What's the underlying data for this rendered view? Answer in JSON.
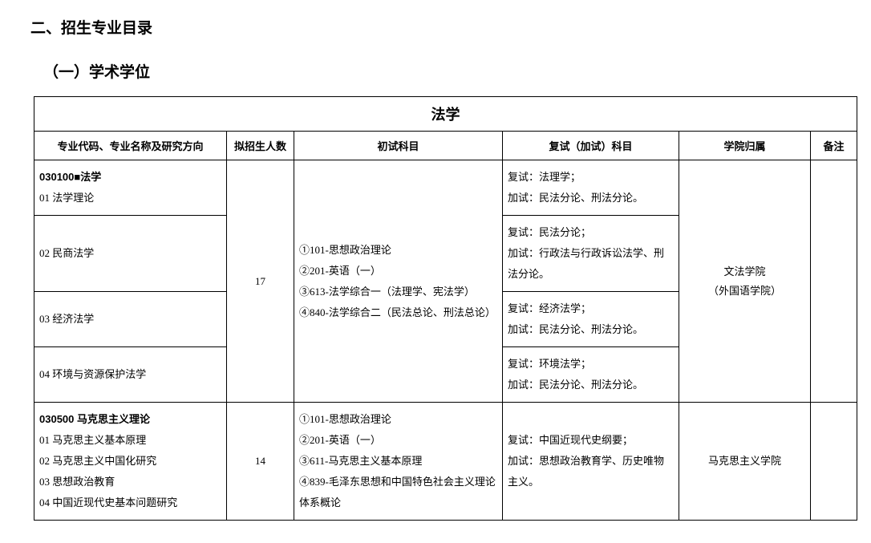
{
  "headings": {
    "section": "二、招生专业目录",
    "subsection": "（一）学术学位"
  },
  "table": {
    "title": "法学",
    "columns": {
      "major": "专业代码、专业名称及研究方向",
      "enroll": "拟招生人数",
      "initial": "初试科目",
      "retest": "复试（加试）科目",
      "college": "学院归属",
      "remark": "备注"
    },
    "blocks": [
      {
        "major_header": "030100■法学",
        "directions": [
          "01 法学理论",
          "02 民商法学",
          "03 经济法学",
          "04 环境与资源保护法学"
        ],
        "enroll": "17",
        "initial": [
          "①101-思想政治理论",
          "②201-英语（一）",
          "③613-法学综合一（法理学、宪法学）",
          "④840-法学综合二（民法总论、刑法总论）"
        ],
        "retests": [
          {
            "fu": "复试：法理学；",
            "jia": "加试：民法分论、刑法分论。"
          },
          {
            "fu": "复试：民法分论；",
            "jia": "加试：行政法与行政诉讼法学、刑法分论。"
          },
          {
            "fu": "复试：经济法学；",
            "jia": "加试：民法分论、刑法分论。"
          },
          {
            "fu": "复试：环境法学；",
            "jia": "加试：民法分论、刑法分论。"
          }
        ],
        "college": [
          "文法学院",
          "（外国语学院）"
        ],
        "remark": ""
      },
      {
        "major_header": "030500 马克思主义理论",
        "directions": [
          "01 马克思主义基本原理",
          "02 马克思主义中国化研究",
          "03 思想政治教育",
          "04 中国近现代史基本问题研究"
        ],
        "enroll": "14",
        "initial": [
          "①101-思想政治理论",
          "②201-英语（一）",
          "③611-马克思主义基本原理",
          "④839-毛泽东思想和中国特色社会主义理论体系概论"
        ],
        "retests": [
          {
            "fu": "复试：中国近现代史纲要；",
            "jia": "加试：思想政治教育学、历史唯物主义。"
          }
        ],
        "college": [
          "马克思主义学院"
        ],
        "remark": ""
      }
    ]
  }
}
